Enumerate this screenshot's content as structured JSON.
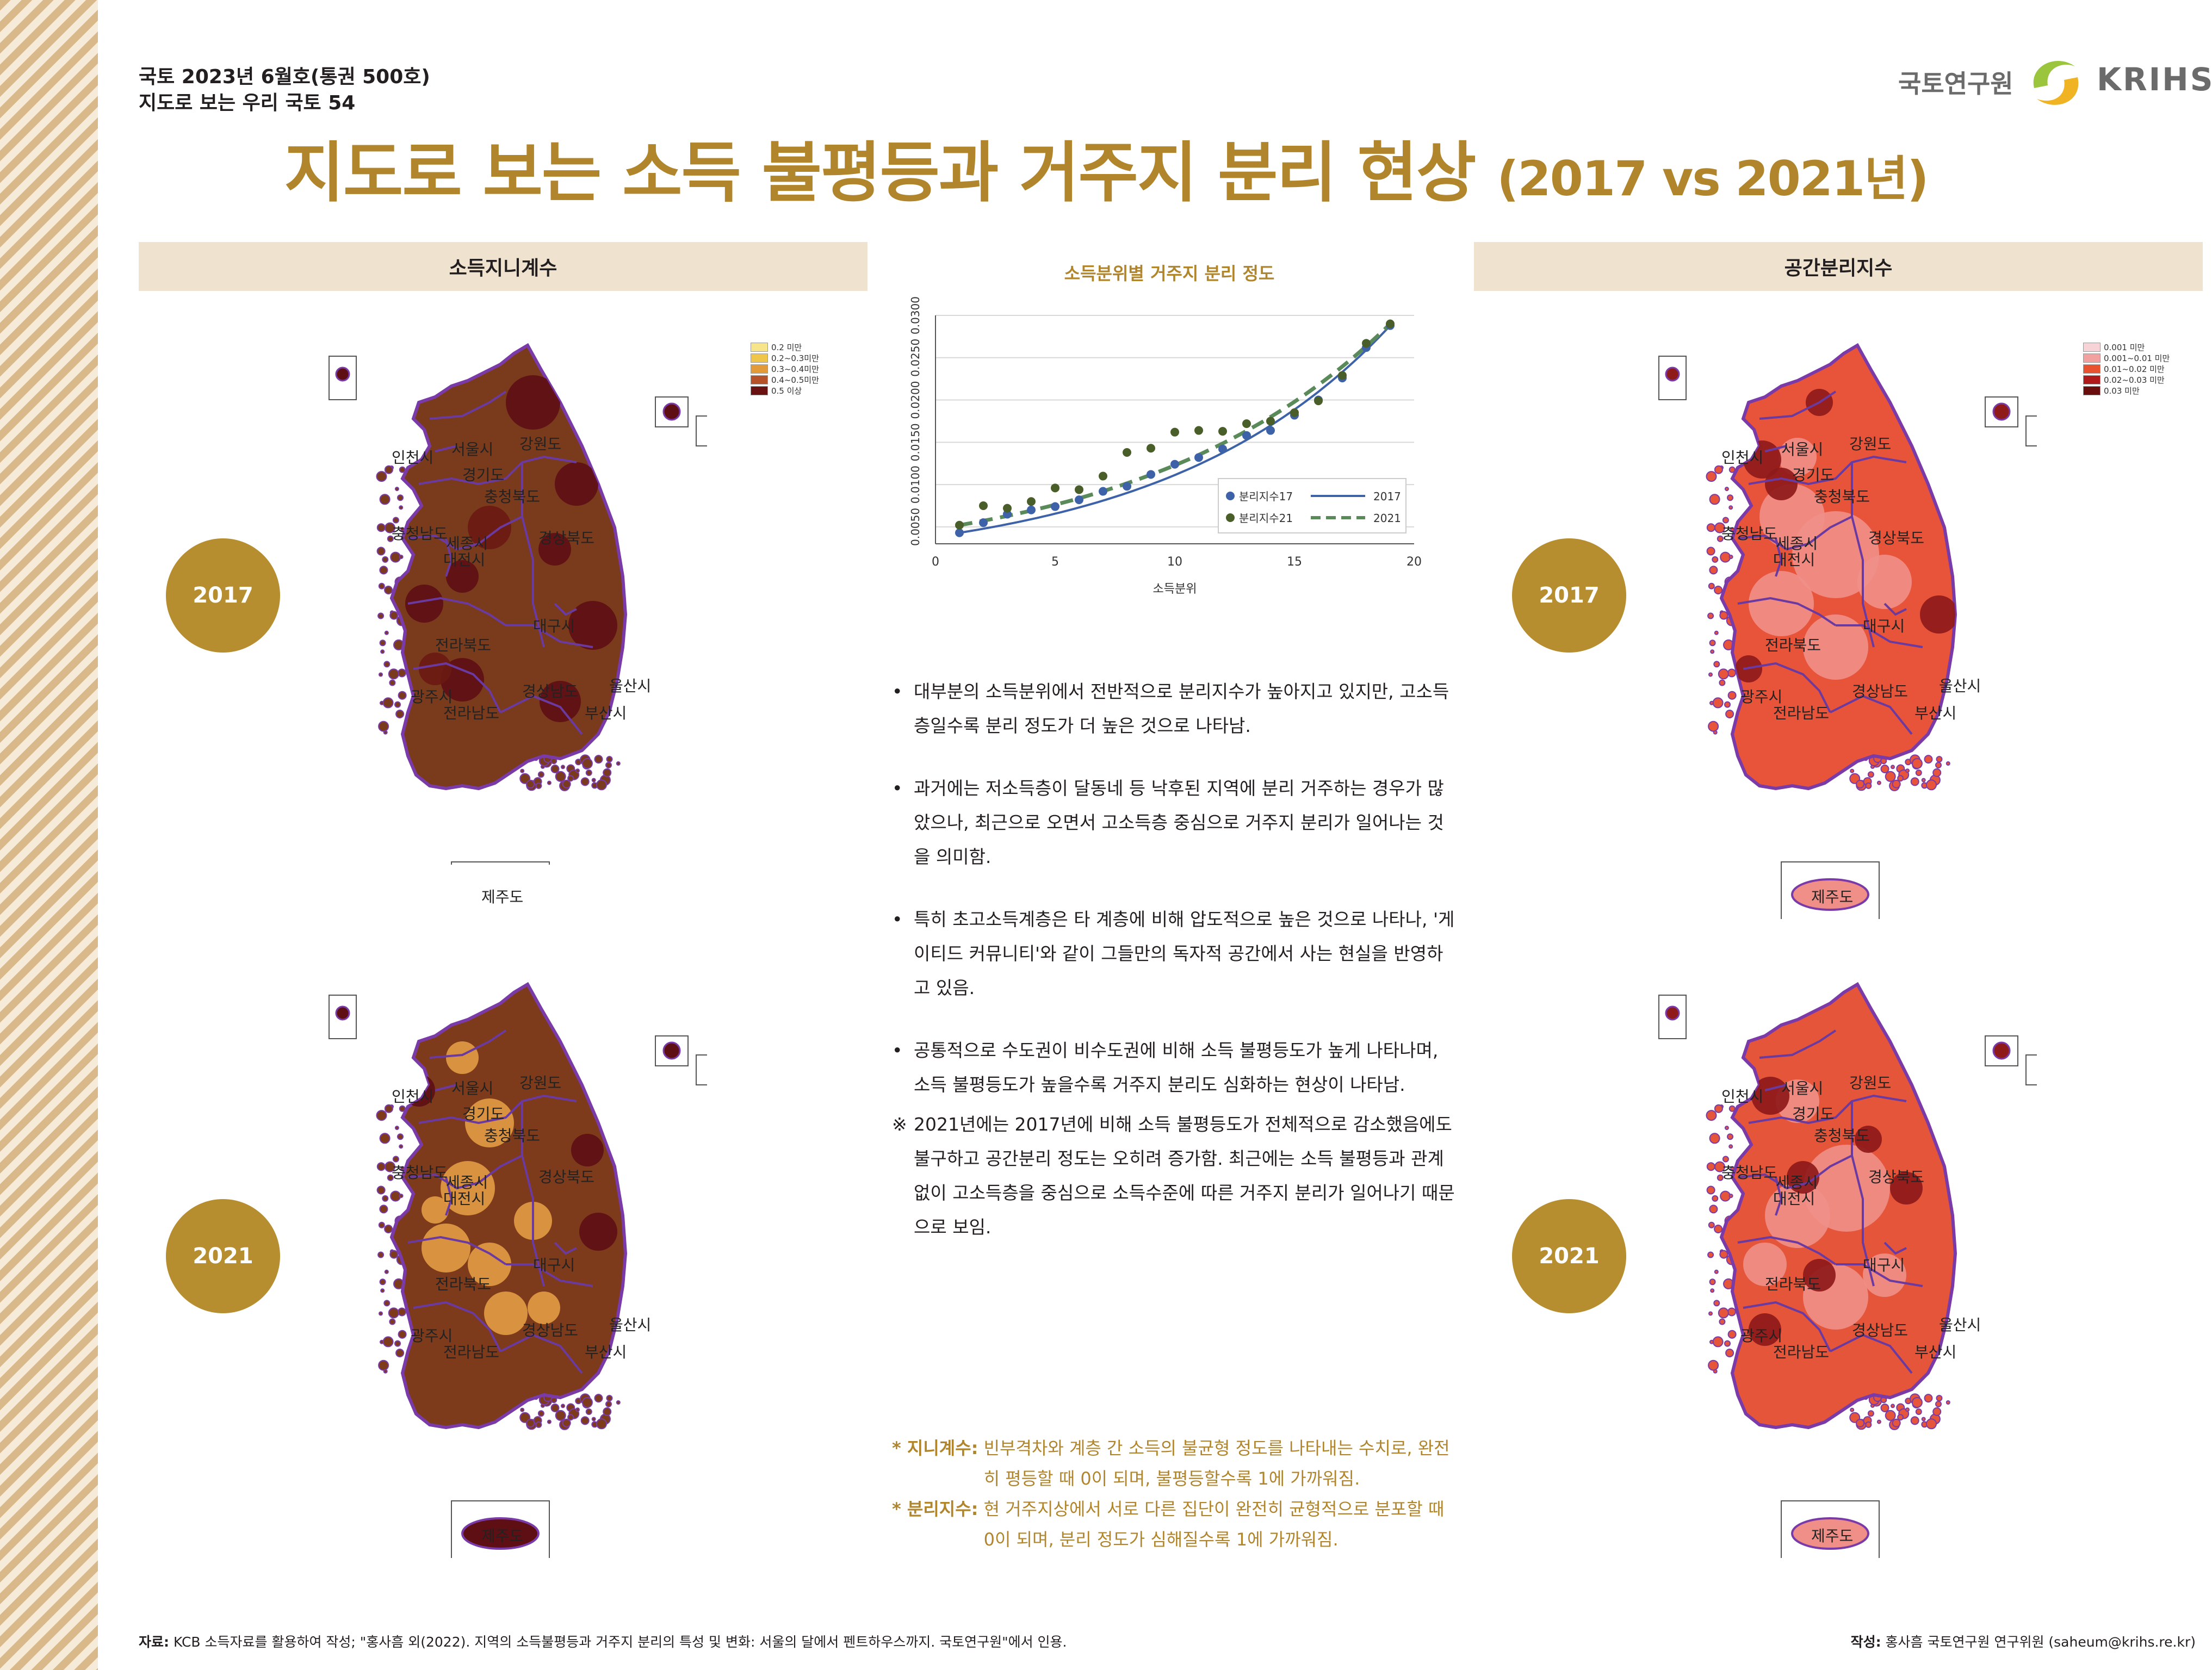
{
  "header": {
    "issue": "국토 2023년 6월호(통권 500호)",
    "series": "지도로 보는 우리 국토 54"
  },
  "logo": {
    "name_ko": "국토연구원",
    "name_en": "KRIHS"
  },
  "title": {
    "main": "지도로 보는 소득 불평등과 거주지 분리 현상",
    "sub": "(2017 vs 2021년)"
  },
  "panels": {
    "left": "소득지니계수",
    "center": "소득분위별 거주지 분리 정도",
    "right": "공간분리지수"
  },
  "years": {
    "first": "2017",
    "second": "2021"
  },
  "map_labels": {
    "seoul": "서울시",
    "incheon": "인천시",
    "gangwon": "강원도",
    "gyeonggi": "경기도",
    "chungbuk": "충청북도",
    "chungnam": "충청남도",
    "sejong": "세종시",
    "daejeon": "대전시",
    "gyeongbuk": "경상북도",
    "daegu": "대구시",
    "jeonbuk": "전라북도",
    "gwangju": "광주시",
    "jeonnam": "전라남도",
    "gyeongnam": "경상남도",
    "ulsan": "울산시",
    "busan": "부산시",
    "jeju": "제주도"
  },
  "legend_gini": [
    {
      "label": "0.2 미만",
      "color": "#f6e58a"
    },
    {
      "label": "0.2~0.3미만",
      "color": "#efc64a"
    },
    {
      "label": "0.3~0.4미만",
      "color": "#e39b3a"
    },
    {
      "label": "0.4~0.5미만",
      "color": "#b5522a"
    },
    {
      "label": "0.5 이상",
      "color": "#6a1212"
    }
  ],
  "legend_seg": [
    {
      "label": "0.001 미만",
      "color": "#f7d3d7"
    },
    {
      "label": "0.001~0.01 미만",
      "color": "#f2a0a0"
    },
    {
      "label": "0.01~0.02 미만",
      "color": "#e8522e"
    },
    {
      "label": "0.02~0.03 미만",
      "color": "#b01a1a"
    },
    {
      "label": "0.03 미만",
      "color": "#6a0d0d"
    }
  ],
  "map_colors": {
    "gini2017": "#7a3a1c",
    "gini2021": "#7d3b1b",
    "gini_light": "#e19a42",
    "gini_dark": "#5e0f14",
    "seg2017": "#e8543a",
    "seg2021": "#e4553a",
    "seg_light": "#f08f88",
    "seg_dark": "#8e1a1a",
    "border": "#6b3aa0",
    "coast": "#7a3aa8"
  },
  "chart_data": {
    "type": "scatter",
    "title": "소득분위별 거주지 분리 정도",
    "xlabel": "소득분위",
    "ylabel": "",
    "xlim": [
      0,
      20
    ],
    "ylim": [
      0.003,
      0.03
    ],
    "xticks": [
      "0",
      "5",
      "10",
      "15",
      "20"
    ],
    "yticks": [
      "0.0050",
      "0.0100",
      "0.0150",
      "0.0200",
      "0.0250",
      "0.0300"
    ],
    "series": [
      {
        "name": "분리지수17",
        "color": "#3d62a8",
        "x": [
          1,
          2,
          3,
          4,
          5,
          6,
          7,
          8,
          9,
          10,
          11,
          12,
          13,
          14,
          15,
          16,
          17,
          18,
          19
        ],
        "y": [
          0.0043,
          0.0055,
          0.0065,
          0.007,
          0.0074,
          0.0082,
          0.0092,
          0.0098,
          0.0112,
          0.0124,
          0.0132,
          0.0142,
          0.0158,
          0.0164,
          0.0182,
          0.02,
          0.0226,
          0.0262,
          0.0288
        ]
      },
      {
        "name": "분리지수21",
        "color": "#4a5e2a",
        "x": [
          1,
          2,
          3,
          4,
          5,
          6,
          7,
          8,
          9,
          10,
          11,
          12,
          13,
          14,
          15,
          16,
          17,
          18,
          19
        ],
        "y": [
          0.0052,
          0.0075,
          0.0072,
          0.008,
          0.0096,
          0.0094,
          0.011,
          0.0138,
          0.0143,
          0.0162,
          0.0164,
          0.0163,
          0.0172,
          0.0175,
          0.0185,
          0.0199,
          0.0229,
          0.0267,
          0.029
        ]
      }
    ],
    "trend": [
      {
        "name": "2017",
        "color": "#3d62a8",
        "style": "solid"
      },
      {
        "name": "2021",
        "color": "#5a8a5a",
        "style": "dashed"
      }
    ]
  },
  "bullets": [
    "대부분의 소득분위에서 전반적으로 분리지수가 높아지고 있지만, 고소득층일수록 분리 정도가 더 높은 것으로 나타남.",
    "과거에는 저소득층이 달동네 등 낙후된 지역에 분리 거주하는 경우가 많았으나, 최근으로 오면서 고소득층 중심으로 거주지 분리가 일어나는 것을 의미함.",
    "특히 초고소득계층은 타 계층에 비해 압도적으로 높은 것으로 나타나, '게이티드 커뮤니티'와 같이 그들만의 독자적 공간에서 사는 현실을 반영하고 있음.",
    "공통적으로 수도권이 비수도권에 비해 소득 불평등도가 높게 나타나며, 소득 불평등도가 높을수록 거주지 분리도 심화하는 현상이 나타남."
  ],
  "note": "2021년에는 2017년에 비해 소득 불평등도가 전체적으로 감소했음에도 불구하고 공간분리 정도는 오히려 증가함. 최근에는 소득 불평등과 관계없이 고소득층을 중심으로 소득수준에 따른 거주지 분리가 일어나기 때문으로 보임.",
  "definitions": [
    {
      "term": "* 지니계수:",
      "text": "빈부격차와 계층 간 소득의 불균형 정도를 나타내는 수치로, 완전히 평등할 때 0이 되며, 불평등할수록 1에 가까워짐."
    },
    {
      "term": "* 분리지수:",
      "text": "현 거주지상에서 서로 다른 집단이 완전히 균형적으로 분포할 때 0이 되며, 분리 정도가 심해질수록 1에 가까워짐."
    }
  ],
  "footer": {
    "source_label": "자료:",
    "source": "KCB 소득자료를 활용하여 작성; \"홍사흠 외(2022). 지역의 소득불평등과 거주지 분리의 특성 및 변화: 서울의 달에서 펜트하우스까지. 국토연구원\"에서 인용.",
    "author_label": "작성:",
    "author": "홍사흠 국토연구원 연구위원 (saheum@krihs.re.kr)"
  }
}
